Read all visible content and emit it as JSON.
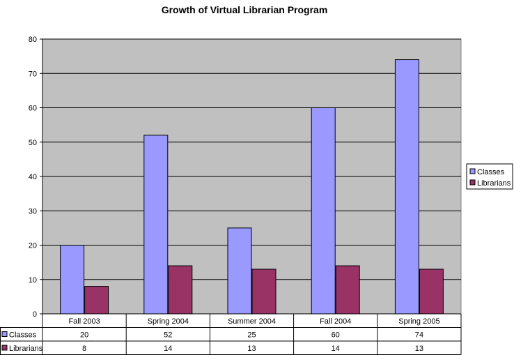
{
  "chart_data": {
    "type": "bar",
    "title": "Growth of Virtual Librarian Program",
    "categories": [
      "Fall 2003",
      "Spring 2004",
      "Summer 2004",
      "Fall 2004",
      "Spring 2005"
    ],
    "series": [
      {
        "name": "Classes",
        "values": [
          20,
          52,
          25,
          60,
          74
        ],
        "color": "#9999ff"
      },
      {
        "name": "Librarians",
        "values": [
          8,
          14,
          13,
          14,
          13
        ],
        "color": "#993366"
      }
    ],
    "ylim": [
      0,
      80
    ],
    "yticks": [
      "0",
      "10",
      "20",
      "30",
      "40",
      "50",
      "60",
      "70",
      "80"
    ],
    "grid": true,
    "plot_background": "#c0c0c0",
    "legend": "right",
    "data_table": true
  }
}
